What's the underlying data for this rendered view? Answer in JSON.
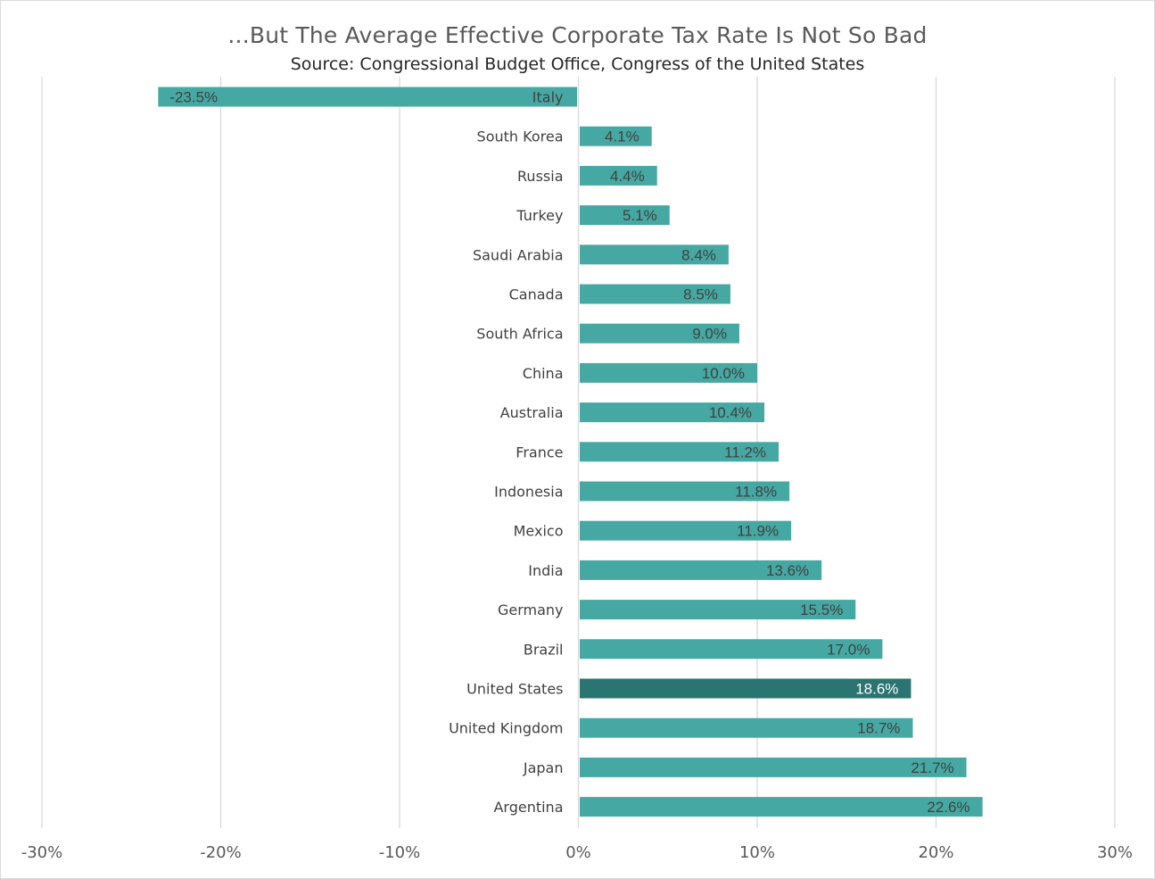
{
  "header": {
    "title": "...But The Average Effective Corporate Tax Rate Is Not So Bad",
    "subtitle": "Source: Congressional Budget Office, Congress of the United States"
  },
  "chart_data": {
    "type": "bar",
    "orientation": "horizontal",
    "categories": [
      "Italy",
      "South Korea",
      "Russia",
      "Turkey",
      "Saudi Arabia",
      "Canada",
      "South Africa",
      "China",
      "Australia",
      "France",
      "Indonesia",
      "Mexico",
      "India",
      "Germany",
      "Brazil",
      "United States",
      "United Kingdom",
      "Japan",
      "Argentina"
    ],
    "values": [
      -23.5,
      4.1,
      4.4,
      5.1,
      8.4,
      8.5,
      9.0,
      10.0,
      10.4,
      11.2,
      11.8,
      11.9,
      13.6,
      15.5,
      17.0,
      18.6,
      18.7,
      21.7,
      22.6
    ],
    "data_labels": [
      "-23.5%",
      "4.1%",
      "4.4%",
      "5.1%",
      "8.4%",
      "8.5%",
      "9.0%",
      "10.0%",
      "10.4%",
      "11.2%",
      "11.8%",
      "11.9%",
      "13.6%",
      "15.5%",
      "17.0%",
      "18.6%",
      "18.7%",
      "21.7%",
      "22.6%"
    ],
    "highlight": "United States",
    "xlim": [
      -30,
      30
    ],
    "xticks": [
      -30,
      -20,
      -10,
      0,
      10,
      20,
      30
    ],
    "xtick_labels": [
      "-30%",
      "-20%",
      "-10%",
      "0%",
      "10%",
      "20%",
      "30%"
    ],
    "grid": "vertical",
    "legend": "none",
    "colors": {
      "bar": "#46a8a3",
      "highlight": "#2a7472",
      "grid": "#d9d9d9",
      "label_dark": "#404040",
      "label_light": "#ffffff"
    }
  }
}
